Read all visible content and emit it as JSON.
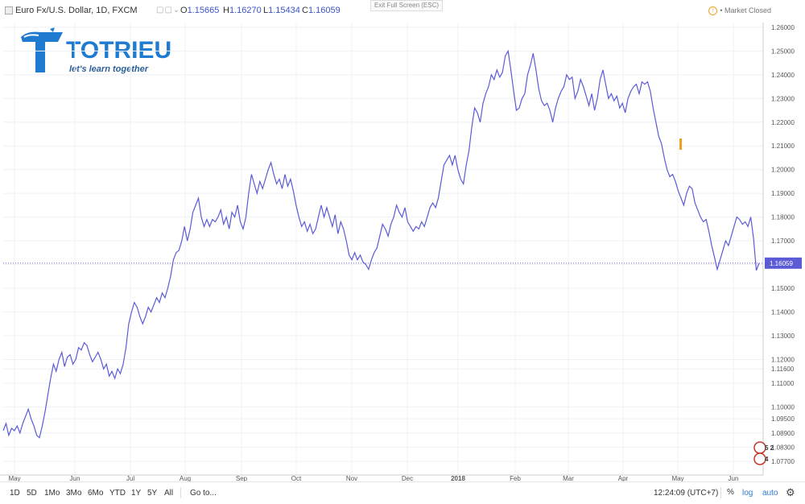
{
  "header": {
    "symbol_title": "Euro Fx/U.S. Dollar, 1D, FXCM",
    "ohlc": [
      {
        "key": "O",
        "value": "1.15665"
      },
      {
        "key": "H",
        "value": "1.16270"
      },
      {
        "key": "L",
        "value": "1.15434"
      },
      {
        "key": "C",
        "value": "1.16059"
      }
    ],
    "exit_fullscreen": "Exit Full Screen (ESC)",
    "market_status": "Market Closed"
  },
  "logo": {
    "word": "TOTRIEU",
    "tagline": "let's learn together",
    "color": "#1e7bd0"
  },
  "toolbar": {
    "timeframes": [
      "1D",
      "5D",
      "1Mo",
      "3Mo",
      "6Mo",
      "YTD",
      "1Y",
      "5Y",
      "All"
    ],
    "goto_label": "Go to...",
    "clock": "12:24:09 (UTC+7)",
    "percent_label": "%",
    "log_label": "log",
    "auto_label": "auto"
  },
  "chart_data": {
    "type": "line",
    "line_color": "#5b5bd6",
    "y_ticks": [
      "1.26000",
      "1.25000",
      "1.24000",
      "1.23000",
      "1.22000",
      "1.21000",
      "1.20000",
      "1.19000",
      "1.18000",
      "1.17000",
      "1.16000",
      "1.15000",
      "1.14000",
      "1.13000",
      "1.12000",
      "1.11600",
      "1.11000",
      "1.10000",
      "1.09500",
      "1.08900",
      "1.08300",
      "1.07700"
    ],
    "x_ticks": [
      "May",
      "Jun",
      "Jul",
      "Aug",
      "Sep",
      "Oct",
      "Nov",
      "Dec",
      "2018",
      "Feb",
      "Mar",
      "Apr",
      "May",
      "Jun"
    ],
    "current_price": 1.16059,
    "current_price_label": "1.16059",
    "badges": [
      "5 2",
      "4"
    ],
    "series": [
      {
        "values": [
          1.09,
          1.093,
          1.088,
          1.091,
          1.09,
          1.092,
          1.089,
          1.093,
          1.096,
          1.099,
          1.095,
          1.092,
          1.088,
          1.087,
          1.092,
          1.098,
          1.105,
          1.112,
          1.118,
          1.115,
          1.12,
          1.123,
          1.117,
          1.121,
          1.122,
          1.118,
          1.12,
          1.125,
          1.124,
          1.127,
          1.126,
          1.122,
          1.119,
          1.121,
          1.123,
          1.12,
          1.116,
          1.118,
          1.113,
          1.115,
          1.112,
          1.116,
          1.114,
          1.118,
          1.125,
          1.135,
          1.14,
          1.144,
          1.142,
          1.138,
          1.135,
          1.138,
          1.142,
          1.14,
          1.143,
          1.146,
          1.144,
          1.148,
          1.146,
          1.15,
          1.155,
          1.162,
          1.165,
          1.166,
          1.17,
          1.176,
          1.17,
          1.175,
          1.182,
          1.185,
          1.188,
          1.18,
          1.176,
          1.179,
          1.176,
          1.179,
          1.178,
          1.18,
          1.183,
          1.177,
          1.18,
          1.175,
          1.182,
          1.18,
          1.185,
          1.178,
          1.175,
          1.18,
          1.19,
          1.198,
          1.194,
          1.19,
          1.195,
          1.192,
          1.196,
          1.2,
          1.203,
          1.198,
          1.194,
          1.196,
          1.192,
          1.198,
          1.193,
          1.196,
          1.191,
          1.185,
          1.18,
          1.176,
          1.178,
          1.174,
          1.177,
          1.173,
          1.175,
          1.18,
          1.185,
          1.18,
          1.184,
          1.18,
          1.176,
          1.181,
          1.173,
          1.178,
          1.175,
          1.17,
          1.164,
          1.162,
          1.165,
          1.162,
          1.164,
          1.161,
          1.16,
          1.158,
          1.162,
          1.165,
          1.167,
          1.172,
          1.177,
          1.175,
          1.172,
          1.177,
          1.18,
          1.185,
          1.182,
          1.18,
          1.184,
          1.178,
          1.176,
          1.174,
          1.176,
          1.175,
          1.178,
          1.176,
          1.18,
          1.184,
          1.186,
          1.184,
          1.188,
          1.195,
          1.202,
          1.204,
          1.206,
          1.202,
          1.206,
          1.2,
          1.196,
          1.194,
          1.202,
          1.208,
          1.218,
          1.226,
          1.224,
          1.22,
          1.228,
          1.232,
          1.235,
          1.24,
          1.238,
          1.242,
          1.239,
          1.241,
          1.248,
          1.25,
          1.242,
          1.233,
          1.225,
          1.226,
          1.23,
          1.232,
          1.24,
          1.244,
          1.249,
          1.242,
          1.234,
          1.229,
          1.227,
          1.228,
          1.225,
          1.22,
          1.226,
          1.23,
          1.233,
          1.235,
          1.24,
          1.238,
          1.239,
          1.23,
          1.233,
          1.238,
          1.235,
          1.231,
          1.227,
          1.232,
          1.225,
          1.23,
          1.238,
          1.242,
          1.236,
          1.23,
          1.232,
          1.229,
          1.231,
          1.226,
          1.228,
          1.224,
          1.23,
          1.233,
          1.235,
          1.236,
          1.232,
          1.237,
          1.236,
          1.237,
          1.233,
          1.226,
          1.22,
          1.214,
          1.211,
          1.205,
          1.2,
          1.197,
          1.198,
          1.195,
          1.191,
          1.188,
          1.185,
          1.19,
          1.193,
          1.192,
          1.186,
          1.183,
          1.18,
          1.178,
          1.179,
          1.174,
          1.168,
          1.163,
          1.158,
          1.162,
          1.166,
          1.17,
          1.168,
          1.172,
          1.176,
          1.18,
          1.179,
          1.177,
          1.178,
          1.176,
          1.18,
          1.171,
          1.1575,
          1.1606
        ]
      }
    ]
  }
}
